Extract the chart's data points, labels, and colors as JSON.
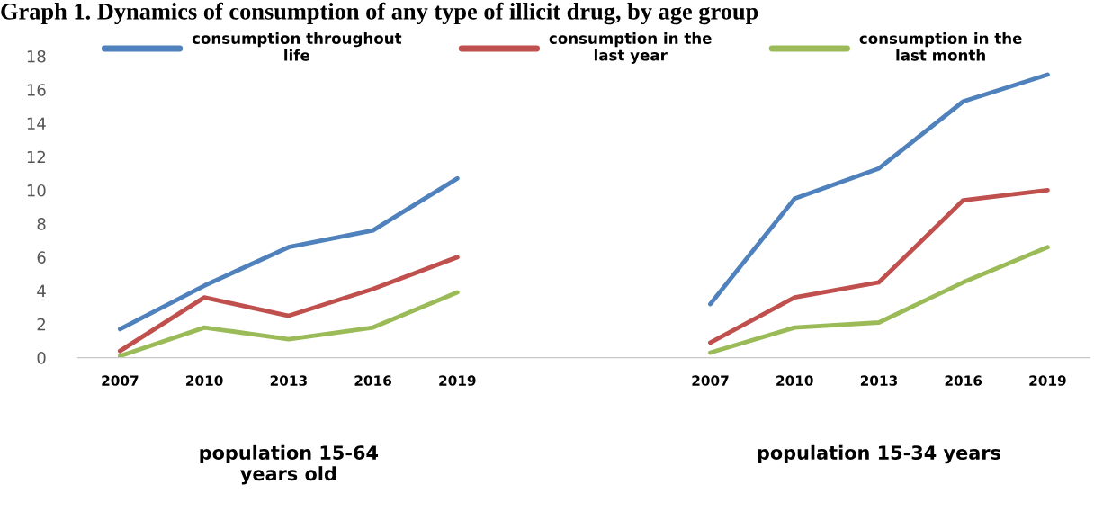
{
  "chart_data": {
    "type": "line",
    "title": "Graph 1. Dynamics of consumption of any type of illicit drug, by age group",
    "categories": [
      "2007",
      "2010",
      "2013",
      "2016",
      "2019",
      null,
      null,
      "2007",
      "2010",
      "2013",
      "2016",
      "2019"
    ],
    "series": [
      {
        "name": "consumption throughout\nlife",
        "color": "#4f81bd",
        "values": [
          1.7,
          4.3,
          6.6,
          7.6,
          10.7,
          null,
          null,
          3.2,
          9.5,
          11.3,
          15.3,
          16.9
        ]
      },
      {
        "name": "consumption in the\nlast year",
        "color": "#c0504d",
        "values": [
          0.4,
          3.6,
          2.5,
          4.1,
          6.0,
          null,
          null,
          0.9,
          3.6,
          4.5,
          9.4,
          10.0
        ]
      },
      {
        "name": "consumption in the\nlast month",
        "color": "#9bbb59",
        "values": [
          0.1,
          1.8,
          1.1,
          1.8,
          3.9,
          null,
          null,
          0.3,
          1.8,
          2.1,
          4.5,
          6.6
        ]
      }
    ],
    "ylim": [
      0,
      18
    ],
    "yticks": [
      0,
      2,
      4,
      6,
      8,
      10,
      12,
      14,
      16,
      18
    ],
    "grid": false,
    "legend": "top",
    "marker": "none",
    "line_style": "solid",
    "annotations": [
      "population 15-64\nyears old",
      "population 15-34 years"
    ]
  }
}
